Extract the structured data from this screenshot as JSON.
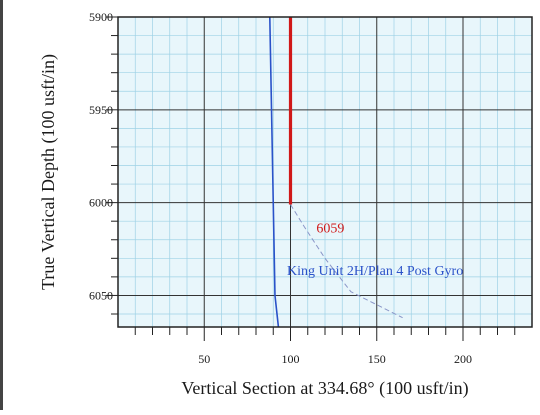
{
  "chart_data": {
    "type": "line",
    "xlabel": "Vertical Section at 334.68° (100 usft/in)",
    "ylabel": "True Vertical Depth (100 usft/in)",
    "xlim": [
      0,
      240
    ],
    "ylim": [
      5900,
      6067
    ],
    "y_inverted": true,
    "x_ticks": [
      50,
      100,
      150,
      200
    ],
    "y_ticks": [
      5900,
      5950,
      6000,
      6050
    ],
    "grid": "major and minor",
    "series": [
      {
        "name": "King Unit 2H/Plan 4 Post Gyro",
        "color": "#2a52c9",
        "points": [
          [
            88,
            5900
          ],
          [
            89,
            5950
          ],
          [
            90,
            6000
          ],
          [
            91,
            6050
          ],
          [
            93,
            6067
          ]
        ]
      },
      {
        "name": "",
        "color": "#d01818",
        "points": [
          [
            100,
            5900
          ],
          [
            100,
            5950
          ],
          [
            100,
            6001
          ]
        ]
      }
    ],
    "projection_line": {
      "color": "#8a96c8",
      "points": [
        [
          100,
          6001
        ],
        [
          108,
          6013
        ],
        [
          120,
          6030
        ],
        [
          135,
          6048
        ],
        [
          165,
          6062
        ]
      ]
    },
    "annotations": [
      {
        "text": "6059",
        "x": 115,
        "y": 6016,
        "color": "#d01818"
      },
      {
        "text": "King Unit 2H/Plan 4 Post Gyro",
        "x": 98,
        "y": 6039,
        "color": "#2a52c9"
      }
    ]
  }
}
